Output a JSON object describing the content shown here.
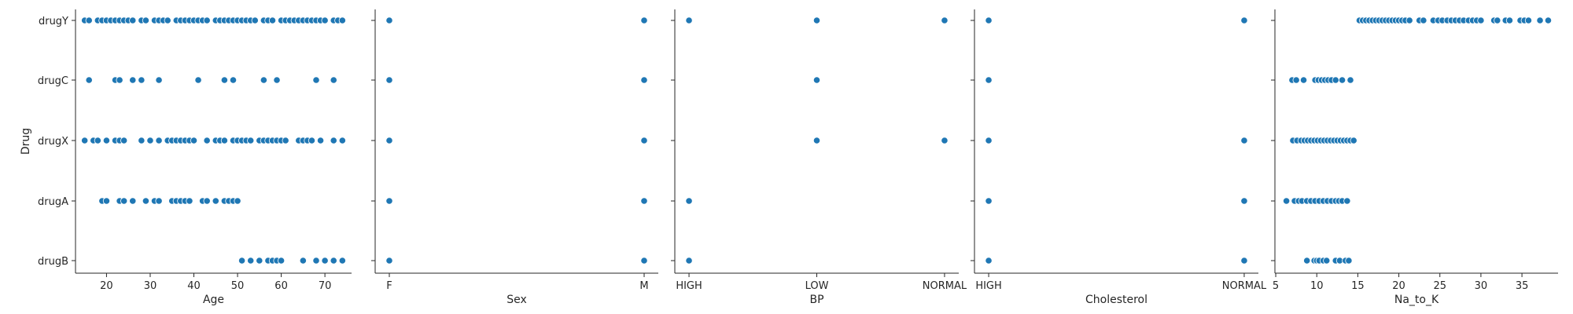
{
  "chart_data": {
    "type": "scatter",
    "shared_y": {
      "label": "Drug",
      "categories": [
        "drugY",
        "drugC",
        "drugX",
        "drugA",
        "drugB"
      ]
    },
    "marker_color": "#1f77b4",
    "grid": false,
    "panels": [
      {
        "xlabel": "Age",
        "x_kind": "numeric",
        "xlim": [
          12.9,
          76.1
        ],
        "x_ticks": [
          20,
          30,
          40,
          50,
          60,
          70
        ],
        "points": {
          "drugY": [
            15,
            16,
            18,
            19,
            20,
            21,
            22,
            23,
            24,
            25,
            26,
            28,
            29,
            31,
            32,
            33,
            34,
            36,
            37,
            38,
            39,
            40,
            41,
            42,
            43,
            45,
            46,
            47,
            48,
            49,
            50,
            51,
            52,
            53,
            54,
            56,
            57,
            58,
            60,
            61,
            62,
            63,
            64,
            65,
            66,
            67,
            68,
            69,
            70,
            72,
            73,
            74
          ],
          "drugC": [
            16,
            22,
            23,
            26,
            28,
            32,
            41,
            47,
            49,
            56,
            59,
            68,
            72
          ],
          "drugX": [
            15,
            17,
            18,
            20,
            22,
            23,
            24,
            28,
            30,
            32,
            34,
            35,
            36,
            37,
            38,
            39,
            40,
            43,
            45,
            46,
            47,
            49,
            50,
            51,
            52,
            53,
            55,
            56,
            57,
            58,
            59,
            60,
            61,
            64,
            65,
            66,
            67,
            69,
            72,
            74
          ],
          "drugA": [
            19,
            20,
            23,
            24,
            26,
            29,
            31,
            32,
            35,
            36,
            37,
            38,
            39,
            42,
            43,
            45,
            47,
            48,
            49,
            50
          ],
          "drugB": [
            51,
            53,
            55,
            57,
            58,
            59,
            60,
            65,
            68,
            70,
            72,
            74
          ]
        }
      },
      {
        "xlabel": "Sex",
        "x_kind": "categorical",
        "x_categories": [
          "F",
          "M"
        ],
        "points": {
          "drugY": [
            "F",
            "M"
          ],
          "drugC": [
            "F",
            "M"
          ],
          "drugX": [
            "F",
            "M"
          ],
          "drugA": [
            "F",
            "M"
          ],
          "drugB": [
            "F",
            "M"
          ]
        }
      },
      {
        "xlabel": "BP",
        "x_kind": "categorical",
        "x_categories": [
          "HIGH",
          "LOW",
          "NORMAL"
        ],
        "points": {
          "drugY": [
            "HIGH",
            "LOW",
            "NORMAL"
          ],
          "drugC": [
            "LOW"
          ],
          "drugX": [
            "LOW",
            "NORMAL"
          ],
          "drugA": [
            "HIGH"
          ],
          "drugB": [
            "HIGH"
          ]
        }
      },
      {
        "xlabel": "Cholesterol",
        "x_kind": "categorical",
        "x_categories": [
          "HIGH",
          "NORMAL"
        ],
        "points": {
          "drugY": [
            "HIGH",
            "NORMAL"
          ],
          "drugC": [
            "HIGH"
          ],
          "drugX": [
            "HIGH",
            "NORMAL"
          ],
          "drugA": [
            "HIGH",
            "NORMAL"
          ],
          "drugB": [
            "HIGH",
            "NORMAL"
          ]
        }
      },
      {
        "xlabel": "Na_to_K",
        "x_kind": "numeric",
        "xlim": [
          4.9,
          39.4
        ],
        "x_ticks": [
          5,
          10,
          15,
          20,
          25,
          30,
          35
        ],
        "points": {
          "drugY": [
            15.2,
            15.6,
            16.0,
            16.4,
            16.8,
            17.2,
            17.6,
            18.0,
            18.4,
            18.8,
            19.2,
            19.6,
            20.0,
            20.4,
            20.8,
            21.3,
            22.5,
            23.0,
            24.2,
            24.8,
            25.3,
            25.9,
            26.4,
            26.9,
            27.4,
            27.9,
            28.5,
            29.0,
            29.5,
            30.0,
            31.6,
            32.0,
            33.0,
            33.5,
            34.8,
            35.3,
            35.8,
            37.2,
            38.2
          ],
          "drugC": [
            7.0,
            7.5,
            8.4,
            9.8,
            10.2,
            10.6,
            11.0,
            11.4,
            11.8,
            12.3,
            13.1,
            14.1
          ],
          "drugX": [
            7.1,
            7.6,
            8.1,
            8.5,
            8.9,
            9.3,
            9.7,
            10.1,
            10.5,
            10.9,
            11.3,
            11.7,
            12.1,
            12.5,
            12.9,
            13.3,
            13.7,
            14.1,
            14.5
          ],
          "drugA": [
            6.3,
            7.3,
            7.8,
            8.2,
            8.8,
            9.3,
            9.8,
            10.3,
            10.8,
            11.3,
            11.8,
            12.3,
            12.7,
            13.1,
            13.7
          ],
          "drugB": [
            8.8,
            9.7,
            10.0,
            10.3,
            10.8,
            11.2,
            12.3,
            12.8,
            13.5,
            13.9
          ]
        }
      }
    ]
  }
}
